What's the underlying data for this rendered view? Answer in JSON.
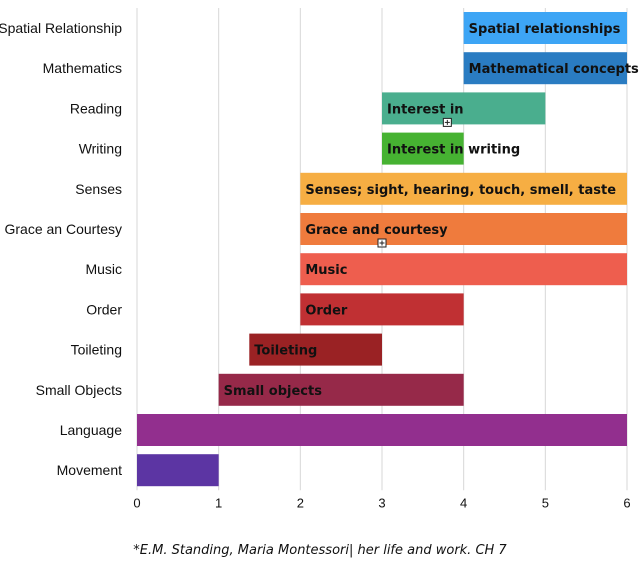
{
  "chart_data": {
    "type": "bar",
    "orientation": "horizontal-range",
    "xlim": [
      0,
      6
    ],
    "xticks": [
      "0",
      "1",
      "2",
      "3",
      "4",
      "5",
      "6"
    ],
    "grid": true,
    "categories": [
      "Spatial Relationship",
      "Mathematics",
      "Reading",
      "Writing",
      "Senses",
      "Grace an Courtesy",
      "Music",
      "Order",
      "Toileting",
      "Small Objects",
      "Language",
      "Movement"
    ],
    "bars": [
      {
        "category": "Spatial Relationship",
        "start": 4,
        "end": 6,
        "label": "Spatial relationships",
        "color": "#3da5f5"
      },
      {
        "category": "Mathematics",
        "start": 4,
        "end": 6,
        "label": "Mathematical concepts",
        "color": "#2a7cc2"
      },
      {
        "category": "Reading",
        "start": 3,
        "end": 5,
        "label": "Interest in",
        "color": "#4aae8e"
      },
      {
        "category": "Writing",
        "start": 3,
        "end": 4,
        "label": "Interest in writing",
        "color": "#46b232"
      },
      {
        "category": "Senses",
        "start": 2,
        "end": 6,
        "label": "Senses; sight, hearing, touch, smell, taste",
        "color": "#f6ae43"
      },
      {
        "category": "Grace an Courtesy",
        "start": 2,
        "end": 6,
        "label": "Grace and courtesy",
        "color": "#ef7b3d"
      },
      {
        "category": "Music",
        "start": 2,
        "end": 6,
        "label": "Music",
        "color": "#ee5e4e"
      },
      {
        "category": "Order",
        "start": 2,
        "end": 4,
        "label": "Order",
        "color": "#c03033"
      },
      {
        "category": "Toileting",
        "start": 1.375,
        "end": 3,
        "label": "Toileting",
        "color": "#9a2224"
      },
      {
        "category": "Small Objects",
        "start": 1,
        "end": 4,
        "label": "Small objects",
        "color": "#962949"
      },
      {
        "category": "Language",
        "start": 0,
        "end": 6,
        "label": "",
        "color": "#922f8e"
      },
      {
        "category": "Movement",
        "start": 0,
        "end": 1,
        "label": "",
        "color": "#5c35a3"
      }
    ],
    "handles": [
      {
        "category": "Reading",
        "x": 3.8
      },
      {
        "category": "Grace an Courtesy",
        "x": 3.0
      }
    ]
  },
  "footnote": "*E.M. Standing, Maria Montessori| her life and work. CH 7"
}
